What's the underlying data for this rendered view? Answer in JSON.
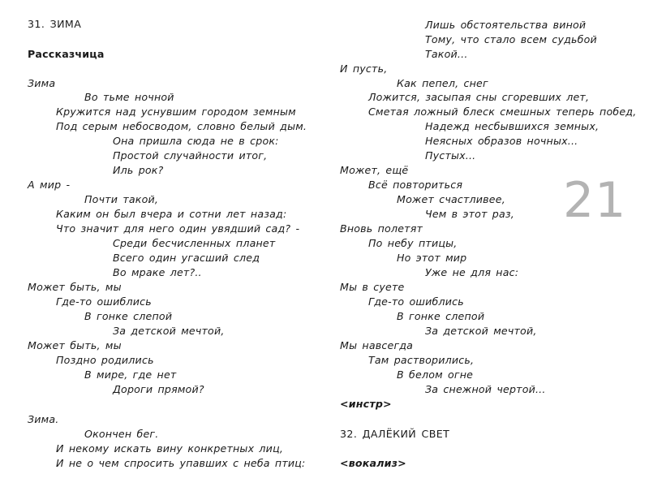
{
  "left": {
    "section_title": "31.  ЗИМА",
    "role": "Рассказчица",
    "lines": [
      "Зима",
      "Во тьме ночной",
      "Кружится над уснувшим городом земным",
      "Под серым небосводом, словно белый дым.",
      "Она пришла сюда не в срок:",
      "Простой случайности итог,",
      "Иль рок?",
      "А мир -",
      "Почти такой,",
      "Каким он был вчера и сотни лет назад:",
      "Что значит для него один увядший сад? -",
      "Среди бесчисленных планет",
      "Всего один угасший след",
      "Во мраке лет?..",
      "Может быть, мы",
      "Где-то ошиблись",
      "В гонке слепой",
      "За детской мечтой,",
      "Может быть, мы",
      "Поздно родились",
      "В мире, где нет",
      "Дороги прямой?",
      "Зима.",
      "Окончен бег.",
      "И некому искать вину конкретных лиц,",
      "И не о чем спросить упавших с неба птиц:"
    ]
  },
  "right": {
    "lines": [
      "Лишь обстоятельства виной",
      "Тому, что стало всем судьбой",
      "Такой...",
      "И пусть,",
      "Как пепел, снег",
      "Ложится, засыпая сны сгоревших лет,",
      "Сметая ложный блеск смешных теперь побед,",
      "Надежд несбывшихся земных,",
      "Неясных образов ночных...",
      "Пустых...",
      "Может, ещё",
      "Всё повториться",
      "Может счастливее,",
      "Чем в этот раз,",
      "Вновь полетят",
      "По небу птицы,",
      "Но этот мир",
      "Уже не для нас:",
      "Мы в суете",
      "Где-то ошиблись",
      "В гонке слепой",
      "За детской мечтой,",
      "Мы навсегда",
      "Там растворились,",
      "В белом огне",
      "За снежной чертой..."
    ],
    "instrumental_marker": "<инстр>",
    "next_section_title": "32.  ДАЛЁКИЙ СВЕТ",
    "vocalise_marker": "<вокализ>"
  },
  "page_number": "21"
}
